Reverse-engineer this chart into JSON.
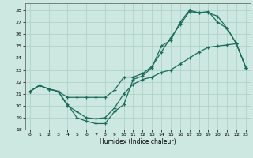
{
  "xlabel": "Humidex (Indice chaleur)",
  "xlim": [
    -0.5,
    23.5
  ],
  "ylim": [
    18,
    28.6
  ],
  "yticks": [
    18,
    19,
    20,
    21,
    22,
    23,
    24,
    25,
    26,
    27,
    28
  ],
  "xticks": [
    0,
    1,
    2,
    3,
    4,
    5,
    6,
    7,
    8,
    9,
    10,
    11,
    12,
    13,
    14,
    15,
    16,
    17,
    18,
    19,
    20,
    21,
    22,
    23
  ],
  "background_color": "#cde8e0",
  "grid_color": "#a8cfc4",
  "line_color": "#1a6b5a",
  "line1_x": [
    0,
    1,
    2,
    3,
    4,
    5,
    6,
    7,
    8,
    9,
    10,
    11,
    12,
    13,
    14,
    15,
    16,
    17,
    18,
    19,
    20,
    21,
    22,
    23
  ],
  "line1_y": [
    21.2,
    21.7,
    21.4,
    21.2,
    20.1,
    19.0,
    18.7,
    18.5,
    18.5,
    19.5,
    20.1,
    22.2,
    22.5,
    23.2,
    25.0,
    25.5,
    27.0,
    28.0,
    27.8,
    27.8,
    27.5,
    26.5,
    25.2,
    23.2
  ],
  "line2_x": [
    0,
    1,
    2,
    3,
    4,
    5,
    6,
    7,
    8,
    9,
    10,
    11,
    12,
    13,
    14,
    15,
    16,
    17,
    18,
    19,
    20,
    21,
    22,
    23
  ],
  "line2_y": [
    21.2,
    21.7,
    21.4,
    21.2,
    20.7,
    20.7,
    20.7,
    20.7,
    20.7,
    21.3,
    22.4,
    22.4,
    22.7,
    23.3,
    24.5,
    25.7,
    26.8,
    27.9,
    27.8,
    27.9,
    27.0,
    26.5,
    25.2,
    23.2
  ],
  "line3_x": [
    0,
    1,
    2,
    3,
    4,
    5,
    6,
    7,
    8,
    9,
    10,
    11,
    12,
    13,
    14,
    15,
    16,
    17,
    18,
    19,
    20,
    21,
    22,
    23
  ],
  "line3_y": [
    21.2,
    21.7,
    21.4,
    21.2,
    20.0,
    19.5,
    19.0,
    18.9,
    19.0,
    19.8,
    21.0,
    21.8,
    22.2,
    22.4,
    22.8,
    23.0,
    23.5,
    24.0,
    24.5,
    24.9,
    25.0,
    25.1,
    25.2,
    23.2
  ]
}
